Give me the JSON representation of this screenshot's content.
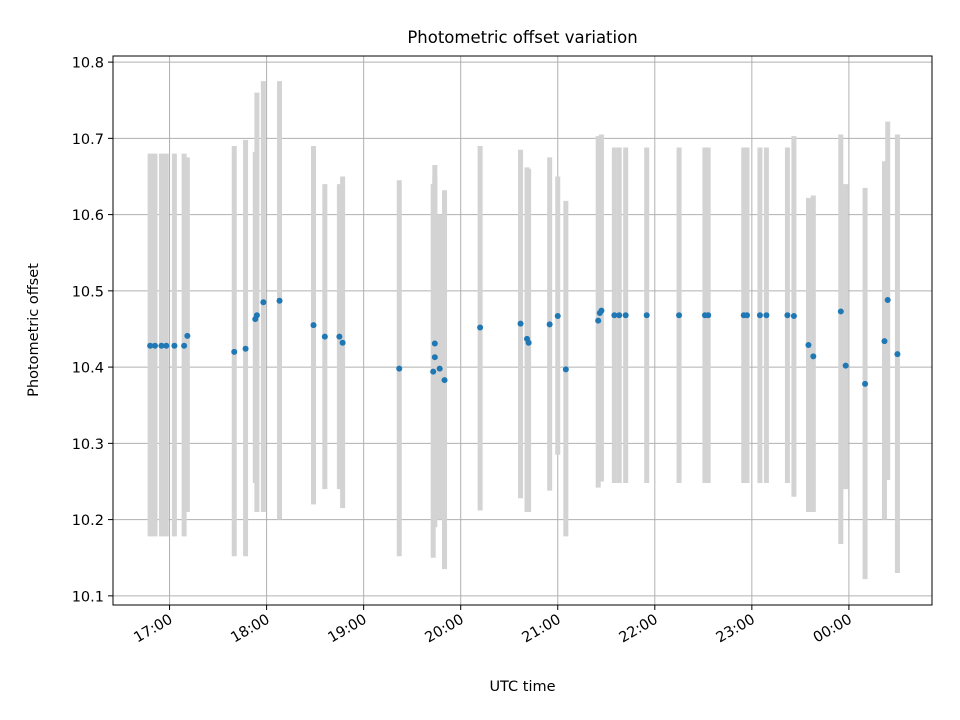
{
  "chart_data": {
    "type": "scatter",
    "title": "Photometric offset variation",
    "xlabel": "UTC time",
    "ylabel": "Photometric offset",
    "x_unit": "UTC time of day",
    "ylim": [
      10.088,
      10.808
    ],
    "yticks": [
      "10.1",
      "10.2",
      "10.3",
      "10.4",
      "10.5",
      "10.6",
      "10.7",
      "10.8"
    ],
    "xticks": [
      "17:00",
      "18:00",
      "19:00",
      "20:00",
      "21:00",
      "22:00",
      "23:00",
      "00:00"
    ],
    "grid": true,
    "colors": {
      "point": "#1f77b4",
      "errorbar": "#d3d3d3",
      "grid": "#b0b0b0"
    },
    "series": [
      {
        "x": [
          "16:48",
          "16:51",
          "16:55",
          "16:58",
          "17:03",
          "17:09",
          "17:11",
          "17:40",
          "17:47",
          "17:53",
          "17:54",
          "17:58",
          "18:08",
          "18:29",
          "18:36",
          "18:45",
          "18:47",
          "19:22",
          "19:43",
          "19:44",
          "19:44",
          "19:47",
          "19:50",
          "20:12",
          "20:37",
          "20:41",
          "20:42",
          "20:55",
          "21:00",
          "21:05",
          "21:25",
          "21:26",
          "21:27",
          "21:35",
          "21:38",
          "21:42",
          "21:55",
          "22:15",
          "22:31",
          "22:33",
          "22:55",
          "22:57",
          "23:05",
          "23:09",
          "23:22",
          "23:26",
          "23:35",
          "23:38",
          "23:55",
          "23:58",
          "00:10",
          "00:22",
          "00:24",
          "00:30"
        ],
        "y": [
          10.428,
          10.428,
          10.428,
          10.428,
          10.428,
          10.428,
          10.441,
          10.42,
          10.424,
          10.463,
          10.468,
          10.485,
          10.487,
          10.455,
          10.44,
          10.44,
          10.432,
          10.398,
          10.394,
          10.413,
          10.431,
          10.398,
          10.383,
          10.452,
          10.457,
          10.437,
          10.432,
          10.456,
          10.467,
          10.397,
          10.461,
          10.471,
          10.474,
          10.468,
          10.468,
          10.468,
          10.468,
          10.468,
          10.468,
          10.468,
          10.468,
          10.468,
          10.468,
          10.468,
          10.468,
          10.467,
          10.429,
          10.414,
          10.473,
          10.402,
          10.378,
          10.434,
          10.488,
          10.417
        ],
        "yerr_low": [
          10.178,
          10.178,
          10.178,
          10.178,
          10.178,
          10.178,
          10.21,
          10.152,
          10.152,
          10.248,
          10.21,
          10.21,
          10.2,
          10.22,
          10.24,
          10.24,
          10.215,
          10.152,
          10.15,
          10.19,
          10.2,
          10.2,
          10.135,
          10.212,
          10.228,
          10.21,
          10.21,
          10.238,
          10.285,
          10.178,
          10.242,
          10.25,
          10.25,
          10.248,
          10.248,
          10.248,
          10.248,
          10.248,
          10.248,
          10.248,
          10.248,
          10.248,
          10.248,
          10.248,
          10.248,
          10.23,
          10.21,
          10.21,
          10.168,
          10.24,
          10.122,
          10.2,
          10.252,
          10.13
        ],
        "yerr_high": [
          10.68,
          10.68,
          10.68,
          10.68,
          10.68,
          10.68,
          10.675,
          10.69,
          10.698,
          10.682,
          10.76,
          10.775,
          10.775,
          10.69,
          10.64,
          10.64,
          10.65,
          10.645,
          10.64,
          10.665,
          10.65,
          10.6,
          10.632,
          10.69,
          10.685,
          10.662,
          10.66,
          10.675,
          10.65,
          10.618,
          10.703,
          10.696,
          10.705,
          10.688,
          10.688,
          10.688,
          10.688,
          10.688,
          10.688,
          10.688,
          10.688,
          10.688,
          10.688,
          10.688,
          10.688,
          10.703,
          10.622,
          10.625,
          10.705,
          10.64,
          10.635,
          10.67,
          10.722,
          10.705
        ]
      }
    ]
  }
}
